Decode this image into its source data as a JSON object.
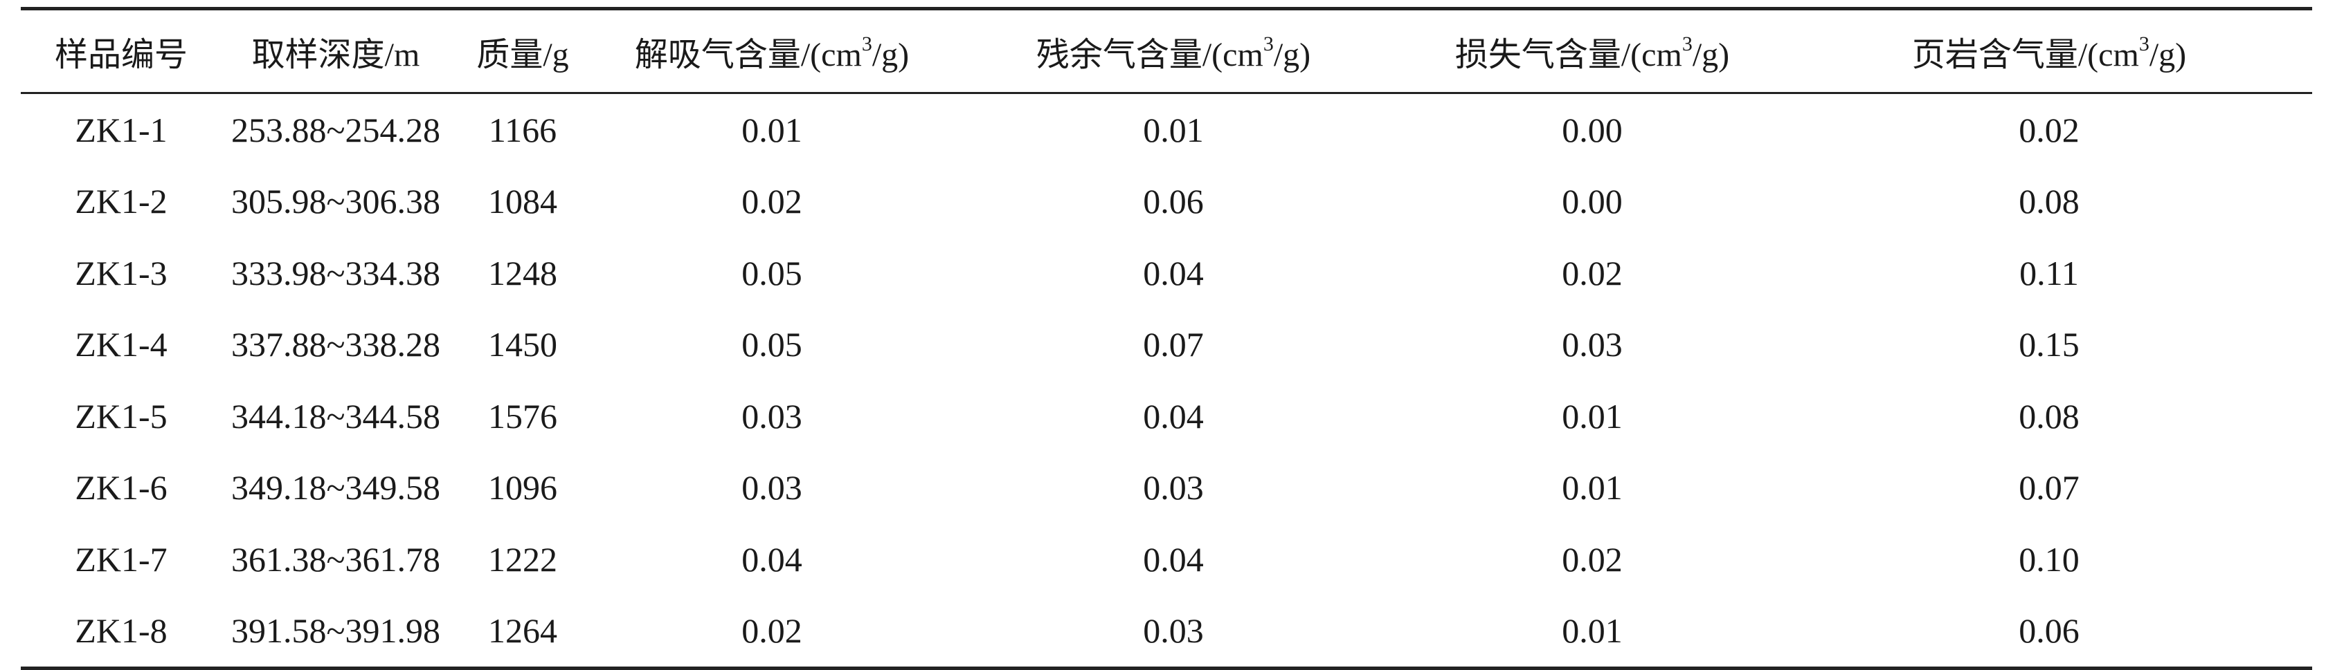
{
  "table": {
    "headers": [
      {
        "text": "样品编号"
      },
      {
        "text": "取样深度/m"
      },
      {
        "text": "质量/g"
      },
      {
        "pre": "解吸气含量/(cm",
        "sup": "3",
        "post": "/g)"
      },
      {
        "pre": "残余气含量/(cm",
        "sup": "3",
        "post": "/g)"
      },
      {
        "pre": "损失气含量/(cm",
        "sup": "3",
        "post": "/g)"
      },
      {
        "pre": "页岩含气量/(cm",
        "sup": "3",
        "post": "/g)"
      }
    ],
    "rows": [
      [
        "ZK1-1",
        "253.88~254.28",
        "1166",
        "0.01",
        "0.01",
        "0.00",
        "0.02"
      ],
      [
        "ZK1-2",
        "305.98~306.38",
        "1084",
        "0.02",
        "0.06",
        "0.00",
        "0.08"
      ],
      [
        "ZK1-3",
        "333.98~334.38",
        "1248",
        "0.05",
        "0.04",
        "0.02",
        "0.11"
      ],
      [
        "ZK1-4",
        "337.88~338.28",
        "1450",
        "0.05",
        "0.07",
        "0.03",
        "0.15"
      ],
      [
        "ZK1-5",
        "344.18~344.58",
        "1576",
        "0.03",
        "0.04",
        "0.01",
        "0.08"
      ],
      [
        "ZK1-6",
        "349.18~349.58",
        "1096",
        "0.03",
        "0.03",
        "0.01",
        "0.07"
      ],
      [
        "ZK1-7",
        "361.38~361.78",
        "1222",
        "0.04",
        "0.04",
        "0.02",
        "0.10"
      ],
      [
        "ZK1-8",
        "391.58~391.98",
        "1264",
        "0.02",
        "0.03",
        "0.01",
        "0.06"
      ]
    ]
  }
}
